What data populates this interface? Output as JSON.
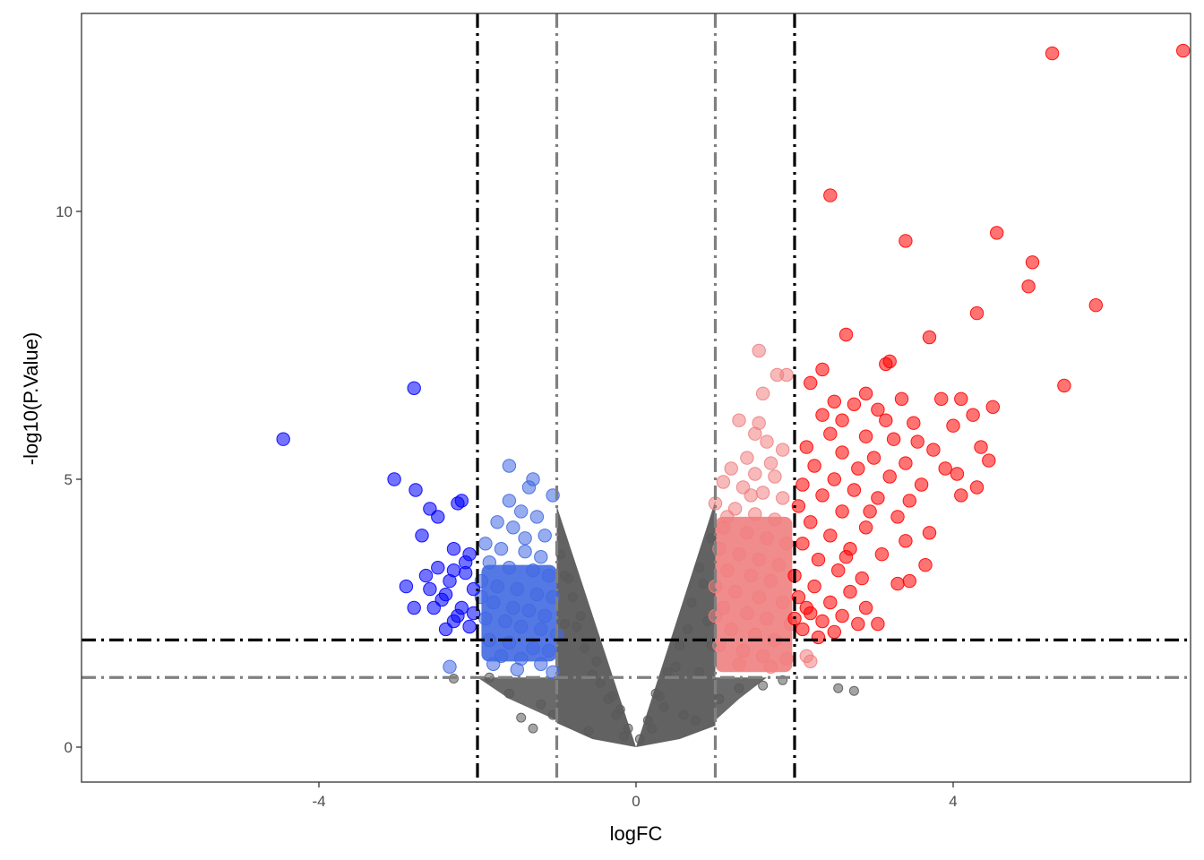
{
  "chart_data": {
    "type": "scatter",
    "title": "",
    "xlabel": "logFC",
    "ylabel": "-log10(P.Value)",
    "xlim": [
      -6.9,
      6.9
    ],
    "ylim": [
      -0.65,
      13.7
    ],
    "x_ticks": [
      {
        "value": -4,
        "label": "-4"
      },
      {
        "value": 0,
        "label": "0"
      },
      {
        "value": 4,
        "label": "4"
      }
    ],
    "y_ticks": [
      {
        "value": 0,
        "label": "0"
      },
      {
        "value": 5,
        "label": "5"
      },
      {
        "value": 10,
        "label": "10"
      }
    ],
    "grid": false,
    "thresholds": {
      "logFC_inner": 1,
      "logFC_outer": 2,
      "neglog10p_inner": 1.3,
      "neglog10p_outer": 2
    },
    "colors": {
      "not_significant": "#5a5a5a",
      "down_moderate": "#4169e1",
      "down_strong": "#0000ff",
      "up_moderate": "#f08080",
      "up_strong": "#ff0000",
      "inner_threshold_line": "#808080",
      "outer_threshold_line": "#000000"
    },
    "series": [
      {
        "name": "down_strong",
        "points": [
          [
            -4.45,
            5.75
          ],
          [
            -2.8,
            6.7
          ],
          [
            -3.05,
            5.0
          ],
          [
            -2.78,
            4.8
          ],
          [
            -2.6,
            4.45
          ],
          [
            -2.2,
            4.6
          ],
          [
            -2.25,
            4.55
          ],
          [
            -2.5,
            4.3
          ],
          [
            -2.7,
            3.95
          ],
          [
            -2.3,
            3.7
          ],
          [
            -2.1,
            3.6
          ],
          [
            -2.5,
            3.35
          ],
          [
            -2.65,
            3.2
          ],
          [
            -2.35,
            3.1
          ],
          [
            -2.9,
            3.0
          ],
          [
            -2.6,
            2.95
          ],
          [
            -2.15,
            3.25
          ],
          [
            -2.4,
            2.85
          ],
          [
            -2.2,
            2.6
          ],
          [
            -2.05,
            2.5
          ],
          [
            -2.8,
            2.6
          ],
          [
            -2.55,
            2.6
          ],
          [
            -2.3,
            2.35
          ],
          [
            -2.1,
            2.25
          ],
          [
            -2.4,
            2.2
          ],
          [
            -2.25,
            2.45
          ],
          [
            -2.45,
            2.75
          ],
          [
            -2.05,
            2.95
          ],
          [
            -2.15,
            3.45
          ],
          [
            -2.3,
            3.3
          ]
        ]
      },
      {
        "name": "down_moderate",
        "points": [
          [
            -1.6,
            5.25
          ],
          [
            -1.3,
            5.0
          ],
          [
            -1.35,
            4.85
          ],
          [
            -1.05,
            4.7
          ],
          [
            -1.6,
            4.6
          ],
          [
            -1.45,
            4.4
          ],
          [
            -1.25,
            4.3
          ],
          [
            -1.75,
            4.2
          ],
          [
            -1.55,
            4.1
          ],
          [
            -1.15,
            3.95
          ],
          [
            -1.9,
            3.8
          ],
          [
            -1.7,
            3.7
          ],
          [
            -1.4,
            3.65
          ],
          [
            -1.2,
            3.55
          ],
          [
            -1.85,
            3.45
          ],
          [
            -1.6,
            3.35
          ],
          [
            -1.3,
            3.3
          ],
          [
            -1.1,
            3.2
          ],
          [
            -1.95,
            3.1
          ],
          [
            -1.75,
            3.0
          ],
          [
            -1.5,
            2.95
          ],
          [
            -1.25,
            2.85
          ],
          [
            -1.05,
            2.8
          ],
          [
            -1.8,
            2.7
          ],
          [
            -1.55,
            2.6
          ],
          [
            -1.35,
            2.55
          ],
          [
            -1.15,
            2.45
          ],
          [
            -1.9,
            2.4
          ],
          [
            -1.65,
            2.35
          ],
          [
            -1.45,
            2.25
          ],
          [
            -1.2,
            2.2
          ],
          [
            -1.0,
            2.1
          ],
          [
            -1.85,
            2.0
          ],
          [
            -1.6,
            1.95
          ],
          [
            -1.3,
            1.85
          ],
          [
            -1.1,
            1.8
          ],
          [
            -1.7,
            1.7
          ],
          [
            -1.45,
            1.65
          ],
          [
            -1.2,
            1.55
          ],
          [
            -2.35,
            1.5
          ],
          [
            -1.5,
            1.45
          ],
          [
            -1.05,
            1.4
          ],
          [
            -1.8,
            1.55
          ],
          [
            -1.95,
            2.8
          ],
          [
            -1.4,
            3.9
          ]
        ]
      },
      {
        "name": "up_moderate",
        "points": [
          [
            1.55,
            7.4
          ],
          [
            1.9,
            6.95
          ],
          [
            1.78,
            6.95
          ],
          [
            1.6,
            6.6
          ],
          [
            1.3,
            6.1
          ],
          [
            1.55,
            6.05
          ],
          [
            1.5,
            5.85
          ],
          [
            1.65,
            5.7
          ],
          [
            1.85,
            5.55
          ],
          [
            1.4,
            5.4
          ],
          [
            1.7,
            5.3
          ],
          [
            1.2,
            5.2
          ],
          [
            1.5,
            5.1
          ],
          [
            1.75,
            5.05
          ],
          [
            1.1,
            4.95
          ],
          [
            1.35,
            4.85
          ],
          [
            1.6,
            4.75
          ],
          [
            1.85,
            4.65
          ],
          [
            1.0,
            4.55
          ],
          [
            1.25,
            4.45
          ],
          [
            1.5,
            4.35
          ],
          [
            1.75,
            4.25
          ],
          [
            1.1,
            4.1
          ],
          [
            1.4,
            4.0
          ],
          [
            1.65,
            3.9
          ],
          [
            1.9,
            3.8
          ],
          [
            1.05,
            3.7
          ],
          [
            1.3,
            3.6
          ],
          [
            1.55,
            3.5
          ],
          [
            1.8,
            3.4
          ],
          [
            1.15,
            3.3
          ],
          [
            1.45,
            3.2
          ],
          [
            1.7,
            3.1
          ],
          [
            1.0,
            3.0
          ],
          [
            1.25,
            2.9
          ],
          [
            1.55,
            2.8
          ],
          [
            1.85,
            2.7
          ],
          [
            1.1,
            2.6
          ],
          [
            1.4,
            2.5
          ],
          [
            1.65,
            2.4
          ],
          [
            1.95,
            2.3
          ],
          [
            1.2,
            2.2
          ],
          [
            1.5,
            2.1
          ],
          [
            1.75,
            2.0
          ],
          [
            1.05,
            1.9
          ],
          [
            1.35,
            1.8
          ],
          [
            1.6,
            1.7
          ],
          [
            1.9,
            1.65
          ],
          [
            1.3,
            1.55
          ],
          [
            1.7,
            1.5
          ],
          [
            2.2,
            1.6
          ],
          [
            2.15,
            1.7
          ],
          [
            1.0,
            2.45
          ],
          [
            1.15,
            4.3
          ],
          [
            1.45,
            4.7
          ]
        ]
      },
      {
        "name": "up_strong",
        "points": [
          [
            6.9,
            13.0
          ],
          [
            5.25,
            12.95
          ],
          [
            2.45,
            10.3
          ],
          [
            4.55,
            9.6
          ],
          [
            3.4,
            9.45
          ],
          [
            5.0,
            9.05
          ],
          [
            4.95,
            8.6
          ],
          [
            5.8,
            8.25
          ],
          [
            4.3,
            8.1
          ],
          [
            2.65,
            7.7
          ],
          [
            3.7,
            7.65
          ],
          [
            3.15,
            7.15
          ],
          [
            3.2,
            7.2
          ],
          [
            2.35,
            7.05
          ],
          [
            2.2,
            6.8
          ],
          [
            5.4,
            6.75
          ],
          [
            2.9,
            6.6
          ],
          [
            3.35,
            6.5
          ],
          [
            3.85,
            6.5
          ],
          [
            4.1,
            6.5
          ],
          [
            2.5,
            6.45
          ],
          [
            2.75,
            6.4
          ],
          [
            4.5,
            6.35
          ],
          [
            3.05,
            6.3
          ],
          [
            2.35,
            6.2
          ],
          [
            4.25,
            6.2
          ],
          [
            2.6,
            6.1
          ],
          [
            3.15,
            6.1
          ],
          [
            3.5,
            6.05
          ],
          [
            4.0,
            6.0
          ],
          [
            2.45,
            5.85
          ],
          [
            2.9,
            5.8
          ],
          [
            3.25,
            5.75
          ],
          [
            3.55,
            5.7
          ],
          [
            4.35,
            5.6
          ],
          [
            2.15,
            5.6
          ],
          [
            3.75,
            5.55
          ],
          [
            2.6,
            5.5
          ],
          [
            3.0,
            5.4
          ],
          [
            4.45,
            5.35
          ],
          [
            3.4,
            5.3
          ],
          [
            2.25,
            5.25
          ],
          [
            2.8,
            5.2
          ],
          [
            3.9,
            5.2
          ],
          [
            4.05,
            5.1
          ],
          [
            3.2,
            5.05
          ],
          [
            2.5,
            5.0
          ],
          [
            2.1,
            4.9
          ],
          [
            3.6,
            4.9
          ],
          [
            4.3,
            4.85
          ],
          [
            2.75,
            4.8
          ],
          [
            4.1,
            4.7
          ],
          [
            2.35,
            4.7
          ],
          [
            3.05,
            4.65
          ],
          [
            3.45,
            4.6
          ],
          [
            2.05,
            4.5
          ],
          [
            2.6,
            4.4
          ],
          [
            3.3,
            4.3
          ],
          [
            2.2,
            4.2
          ],
          [
            2.9,
            4.1
          ],
          [
            3.7,
            4.0
          ],
          [
            2.45,
            3.95
          ],
          [
            3.4,
            3.85
          ],
          [
            2.1,
            3.8
          ],
          [
            2.7,
            3.7
          ],
          [
            3.1,
            3.6
          ],
          [
            2.3,
            3.5
          ],
          [
            3.65,
            3.4
          ],
          [
            2.55,
            3.3
          ],
          [
            2.0,
            3.2
          ],
          [
            2.85,
            3.15
          ],
          [
            3.3,
            3.05
          ],
          [
            2.25,
            3.0
          ],
          [
            2.7,
            2.9
          ],
          [
            2.05,
            2.8
          ],
          [
            2.45,
            2.7
          ],
          [
            2.9,
            2.6
          ],
          [
            2.2,
            2.5
          ],
          [
            2.6,
            2.45
          ],
          [
            2.0,
            2.4
          ],
          [
            2.35,
            2.35
          ],
          [
            2.8,
            2.3
          ],
          [
            2.1,
            2.2
          ],
          [
            2.5,
            2.15
          ],
          [
            2.3,
            2.05
          ],
          [
            3.05,
            2.3
          ],
          [
            3.45,
            3.1
          ],
          [
            2.15,
            2.6
          ],
          [
            2.65,
            3.55
          ],
          [
            2.95,
            4.4
          ]
        ]
      },
      {
        "name": "not_significant",
        "points": [
          [
            1.85,
            1.25
          ],
          [
            2.55,
            1.1
          ],
          [
            2.75,
            1.05
          ],
          [
            -2.3,
            1.28
          ],
          [
            -1.45,
            0.55
          ],
          [
            -1.3,
            0.35
          ],
          [
            -0.6,
            0.3
          ],
          [
            -0.25,
            0.6
          ],
          [
            0.35,
            0.75
          ],
          [
            0.6,
            0.6
          ],
          [
            0.8,
            1.4
          ],
          [
            0.95,
            1.9
          ],
          [
            0.9,
            2.35
          ],
          [
            0.7,
            2.7
          ],
          [
            0.55,
            1.9
          ],
          [
            0.25,
            1.0
          ],
          [
            0.15,
            0.5
          ],
          [
            -0.1,
            0.35
          ],
          [
            -0.35,
            0.9
          ],
          [
            -0.55,
            1.35
          ],
          [
            -0.75,
            2.25
          ],
          [
            -0.9,
            3.2
          ],
          [
            -0.95,
            3.6
          ],
          [
            -0.8,
            2.8
          ],
          [
            -0.65,
            1.85
          ],
          [
            -0.45,
            1.2
          ],
          [
            -0.2,
            0.7
          ],
          [
            0.05,
            0.15
          ],
          [
            0.4,
            1.4
          ],
          [
            0.65,
            2.2
          ],
          [
            0.85,
            3.05
          ],
          [
            0.95,
            3.9
          ],
          [
            0.8,
            3.35
          ],
          [
            0.5,
            1.5
          ],
          [
            0.3,
            0.95
          ],
          [
            -0.3,
            0.95
          ],
          [
            -0.5,
            1.6
          ],
          [
            -0.7,
            2.45
          ],
          [
            -0.85,
            3.15
          ],
          [
            -0.9,
            2.3
          ],
          [
            -1.6,
            1.0
          ],
          [
            -1.2,
            0.8
          ],
          [
            1.3,
            1.1
          ],
          [
            1.6,
            1.15
          ],
          [
            1.05,
            0.9
          ],
          [
            -1.85,
            1.3
          ],
          [
            -1.05,
            0.6
          ],
          [
            0.2,
            0.35
          ],
          [
            -0.15,
            0.2
          ],
          [
            0.75,
            0.5
          ]
        ]
      }
    ]
  }
}
